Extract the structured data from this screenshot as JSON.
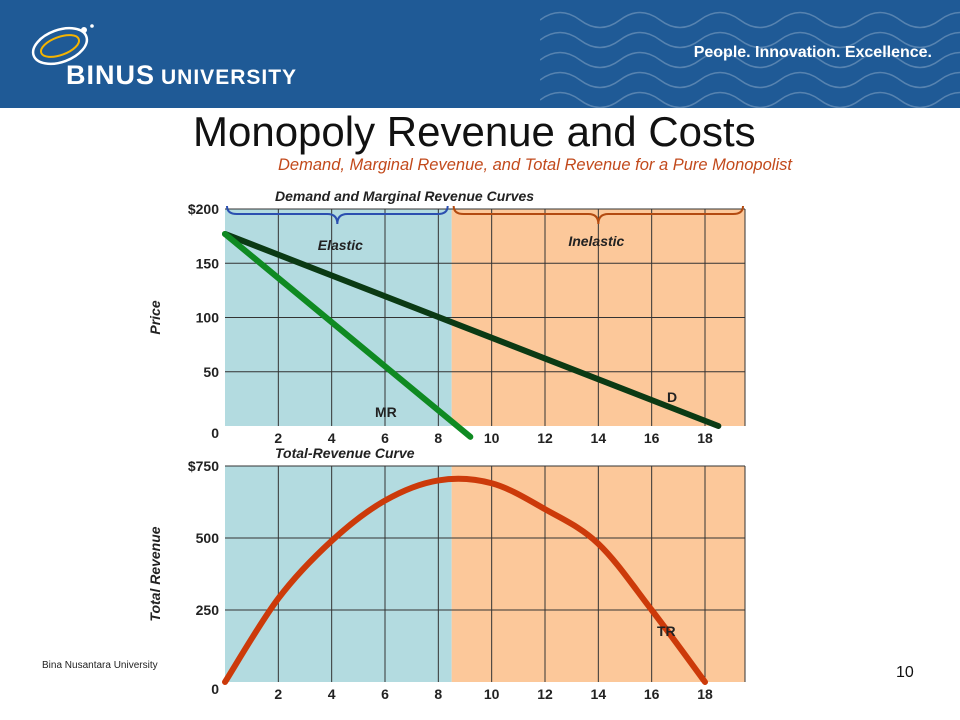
{
  "header": {
    "brand": "BINUS",
    "brand_suffix": "UNIVERSITY",
    "tagline": "People. Innovation. Excellence."
  },
  "slide": {
    "title": "Monopoly Revenue and Costs",
    "subtitle": "Demand, Marginal Revenue, and Total Revenue for a Pure Monopolist",
    "footer": "Bina Nusantara University",
    "page_number": "10"
  },
  "colors": {
    "elastic_region": "#b3dbe0",
    "inelastic_region": "#fcc89a",
    "demand": "#0b3a14",
    "marginal_revenue": "#0f8a22",
    "total_revenue": "#cc3a0a",
    "elastic_text": "#2b4fb0",
    "inelastic_text": "#b34a10"
  },
  "chart_data": [
    {
      "type": "line",
      "title": "Demand and Marginal Revenue Curves",
      "ylabel": "Price",
      "xticks": [
        "2",
        "4",
        "6",
        "8",
        "10",
        "12",
        "14",
        "16",
        "18"
      ],
      "yticks": [
        "0",
        "50",
        "100",
        "150",
        "$200"
      ],
      "xlim": [
        0,
        19.5
      ],
      "ylim": [
        0,
        200
      ],
      "grid": true,
      "regions": [
        {
          "label": "Elastic",
          "x": [
            0,
            8.5
          ]
        },
        {
          "label": "Inelastic",
          "x": [
            8.5,
            19.5
          ]
        }
      ],
      "series": [
        {
          "name": "D",
          "x": [
            0,
            18.5
          ],
          "y": [
            177,
            0
          ]
        },
        {
          "name": "MR",
          "x": [
            0,
            9.2
          ],
          "y": [
            177,
            -10
          ]
        }
      ]
    },
    {
      "type": "line",
      "title": "Total-Revenue Curve",
      "ylabel": "Total Revenue",
      "xticks": [
        "2",
        "4",
        "6",
        "8",
        "10",
        "12",
        "14",
        "16",
        "18"
      ],
      "yticks": [
        "0",
        "250",
        "500",
        "$750"
      ],
      "xlim": [
        0,
        19.5
      ],
      "ylim": [
        0,
        750
      ],
      "grid": true,
      "series": [
        {
          "name": "TR",
          "x": [
            0,
            2,
            4,
            6,
            8,
            10,
            12,
            14,
            16,
            18
          ],
          "y": [
            0,
            290,
            490,
            630,
            700,
            690,
            600,
            480,
            250,
            0
          ]
        }
      ]
    }
  ]
}
